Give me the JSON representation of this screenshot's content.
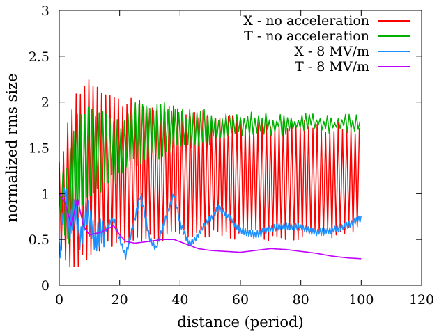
{
  "chart_data": {
    "type": "line",
    "title": "",
    "xlabel": "distance (period)",
    "ylabel": "normalized rms size",
    "xlim": [
      0,
      120
    ],
    "ylim": [
      0,
      3
    ],
    "xticks": [
      0,
      20,
      40,
      60,
      80,
      100,
      120
    ],
    "yticks": [
      0,
      0.5,
      1,
      1.5,
      2,
      2.5,
      3
    ],
    "xtick_labels": [
      "0",
      "20",
      "40",
      "60",
      "80",
      "100",
      "120"
    ],
    "ytick_labels": [
      "0",
      "0.5",
      "1",
      "1.5",
      "2",
      "2.5",
      "3"
    ],
    "grid": false,
    "legend_position": "top-right",
    "series": [
      {
        "name": "X - no acceleration",
        "color": "#ff0000",
        "x_range": [
          0,
          100
        ],
        "oscillation_period": 1.4,
        "envelope": [
          [
            0,
            0.35,
            1.3
          ],
          [
            5,
            0.2,
            2.05
          ],
          [
            10,
            0.35,
            2.25
          ],
          [
            20,
            0.5,
            2.0
          ],
          [
            30,
            0.52,
            1.95
          ],
          [
            40,
            0.55,
            1.9
          ],
          [
            60,
            0.55,
            1.78
          ],
          [
            80,
            0.55,
            1.75
          ],
          [
            100,
            0.6,
            1.7
          ]
        ]
      },
      {
        "name": "T - no acceleration",
        "color": "#00b000",
        "x_range": [
          0,
          100
        ],
        "oscillation_period": 1.2,
        "envelope": [
          [
            0,
            0.75,
            1.1
          ],
          [
            3,
            0.5,
            1.35
          ],
          [
            6,
            0.75,
            1.9
          ],
          [
            10,
            1.0,
            1.9
          ],
          [
            15,
            1.1,
            1.88
          ],
          [
            20,
            1.2,
            1.75
          ],
          [
            25,
            1.35,
            2.0
          ],
          [
            30,
            1.4,
            1.95
          ],
          [
            35,
            1.45,
            1.98
          ],
          [
            40,
            1.5,
            1.88
          ],
          [
            50,
            1.58,
            1.86
          ],
          [
            60,
            1.65,
            1.85
          ],
          [
            80,
            1.7,
            1.84
          ],
          [
            100,
            1.72,
            1.82
          ]
        ]
      },
      {
        "name": "X - 8 MV/m",
        "color": "#1e90ff",
        "x": [
          0,
          2,
          3,
          5,
          7,
          9,
          12,
          15,
          18,
          20,
          22,
          25,
          27,
          30,
          32,
          35,
          38,
          40,
          43,
          45,
          48,
          50,
          53,
          56,
          60,
          65,
          70,
          75,
          80,
          85,
          90,
          95,
          100
        ],
        "y": [
          0.3,
          1.1,
          0.55,
          0.85,
          0.5,
          0.8,
          0.52,
          0.6,
          0.72,
          0.5,
          0.32,
          0.72,
          1.0,
          0.5,
          0.4,
          0.7,
          1.0,
          0.68,
          0.45,
          0.5,
          0.65,
          0.72,
          0.85,
          0.75,
          0.6,
          0.55,
          0.62,
          0.65,
          0.63,
          0.58,
          0.6,
          0.65,
          0.73
        ],
        "jitter": 0.06
      },
      {
        "name": "T - 8 MV/m",
        "color": "#c000ff",
        "x": [
          0,
          2,
          4,
          6,
          8,
          10,
          14,
          18,
          20,
          22,
          25,
          30,
          34,
          38,
          42,
          46,
          50,
          55,
          60,
          65,
          70,
          75,
          80,
          85,
          90,
          95,
          100
        ],
        "y": [
          1.0,
          0.9,
          0.65,
          0.95,
          0.65,
          0.55,
          0.58,
          0.65,
          0.55,
          0.48,
          0.46,
          0.48,
          0.5,
          0.5,
          0.45,
          0.4,
          0.38,
          0.37,
          0.36,
          0.38,
          0.4,
          0.39,
          0.37,
          0.35,
          0.32,
          0.3,
          0.29
        ],
        "jitter": 0
      }
    ]
  }
}
